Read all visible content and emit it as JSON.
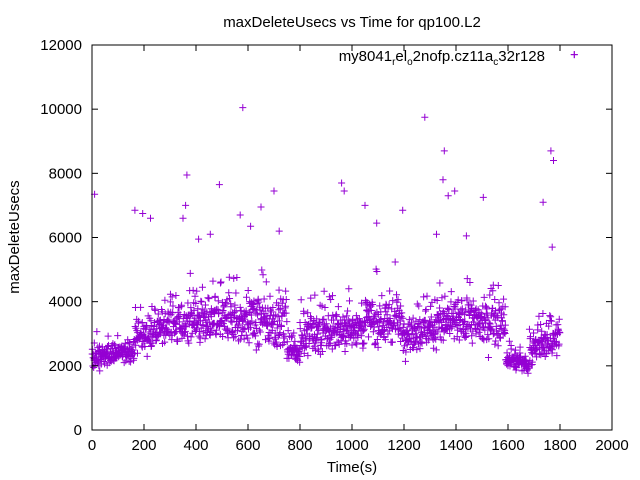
{
  "chart_data": {
    "type": "scatter",
    "title": "maxDeleteUsecs vs Time for qp100.L2",
    "xlabel": "Time(s)",
    "ylabel": "maxDeleteUsecs",
    "xlim": [
      0,
      2000
    ],
    "ylim": [
      0,
      12000
    ],
    "x_ticks": [
      "0",
      "200",
      "400",
      "600",
      "800",
      "1000",
      "1200",
      "1400",
      "1600",
      "1800",
      "2000"
    ],
    "y_ticks": [
      "0",
      "2000",
      "4000",
      "6000",
      "8000",
      "10000",
      "12000"
    ],
    "legend": {
      "position": "top-right",
      "label_parts": [
        {
          "text": "my8041",
          "sub": false
        },
        {
          "text": "r",
          "sub": true
        },
        {
          "text": "el",
          "sub": false
        },
        {
          "text": "o",
          "sub": true
        },
        {
          "text": "2nofp.cz11a",
          "sub": false
        },
        {
          "text": "c",
          "sub": true
        },
        {
          "text": "32r128",
          "sub": false
        }
      ]
    },
    "series": [
      {
        "name": "my8041_rel_o2nofp.cz11a_c32r128",
        "color": "#9400d3",
        "marker": "plus",
        "segments": [
          {
            "x0": 0,
            "x1": 160,
            "base0": 2200,
            "base1": 2500,
            "spread": 300
          },
          {
            "x0": 160,
            "x1": 300,
            "base0": 2800,
            "base1": 3300,
            "spread": 450
          },
          {
            "x0": 300,
            "x1": 500,
            "base0": 3300,
            "base1": 3300,
            "spread": 650
          },
          {
            "x0": 500,
            "x1": 750,
            "base0": 3400,
            "base1": 3300,
            "spread": 700
          },
          {
            "x0": 750,
            "x1": 800,
            "base0": 2600,
            "base1": 2400,
            "spread": 350
          },
          {
            "x0": 800,
            "x1": 1050,
            "base0": 2900,
            "base1": 3200,
            "spread": 600
          },
          {
            "x0": 1050,
            "x1": 1200,
            "base0": 3400,
            "base1": 3300,
            "spread": 650
          },
          {
            "x0": 1200,
            "x1": 1380,
            "base0": 3000,
            "base1": 3300,
            "spread": 550
          },
          {
            "x0": 1380,
            "x1": 1590,
            "base0": 3400,
            "base1": 3300,
            "spread": 650
          },
          {
            "x0": 1590,
            "x1": 1680,
            "base0": 2200,
            "base1": 2000,
            "spread": 250
          },
          {
            "x0": 1680,
            "x1": 1800,
            "base0": 2400,
            "base1": 2900,
            "spread": 450
          }
        ],
        "outliers": [
          [
            10,
            7350
          ],
          [
            165,
            6850
          ],
          [
            195,
            6750
          ],
          [
            225,
            6600
          ],
          [
            350,
            6600
          ],
          [
            360,
            7000
          ],
          [
            365,
            7950
          ],
          [
            410,
            5950
          ],
          [
            455,
            6100
          ],
          [
            490,
            7650
          ],
          [
            570,
            6700
          ],
          [
            580,
            10050
          ],
          [
            610,
            6350
          ],
          [
            650,
            6950
          ],
          [
            700,
            7450
          ],
          [
            720,
            6200
          ],
          [
            960,
            7700
          ],
          [
            970,
            7450
          ],
          [
            1050,
            7000
          ],
          [
            1095,
            6450
          ],
          [
            1195,
            6850
          ],
          [
            1280,
            9750
          ],
          [
            1325,
            6100
          ],
          [
            1350,
            7800
          ],
          [
            1355,
            8700
          ],
          [
            1370,
            7300
          ],
          [
            1395,
            7450
          ],
          [
            1440,
            6050
          ],
          [
            1505,
            7250
          ],
          [
            1735,
            7100
          ],
          [
            1765,
            8700
          ],
          [
            1775,
            8400
          ],
          [
            1770,
            5700
          ],
          [
            1855,
            11700
          ]
        ],
        "point_count": 1600
      }
    ]
  }
}
